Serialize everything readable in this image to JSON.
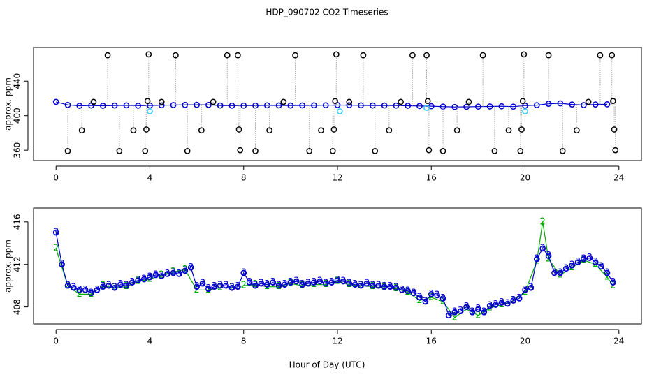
{
  "chart_data": [
    {
      "type": "scatter",
      "title": "HDP_090702  CO2 Timeseries",
      "ylabel": "approx. ppm",
      "xlim": [
        -0.96,
        24.96
      ],
      "ylim": [
        348,
        479
      ],
      "xticks": [
        0,
        4,
        8,
        12,
        16,
        20,
        24
      ],
      "yticks": [
        360,
        400,
        440
      ],
      "series": [
        {
          "color": "#0000cc",
          "marker": "circle",
          "line": true,
          "x": [
            0,
            0.5,
            1,
            1.5,
            2,
            2.5,
            3,
            3.5,
            4,
            4.5,
            5,
            5.5,
            6,
            6.5,
            7,
            7.5,
            8,
            8.5,
            9,
            9.5,
            10,
            10.5,
            11,
            11.5,
            12,
            12.5,
            13,
            13.5,
            14,
            14.5,
            15,
            15.5,
            16,
            16.5,
            17,
            17.5,
            18,
            18.5,
            19,
            19.5,
            20,
            20.5,
            21,
            21.5,
            22,
            22.5,
            23,
            23.5
          ],
          "values": [
            416,
            412.5,
            411.5,
            411.8,
            411.5,
            411.8,
            412,
            411.6,
            411.8,
            412.1,
            412.3,
            412.5,
            412.6,
            412.5,
            411.8,
            411.6,
            411.7,
            411.7,
            412,
            411.9,
            411.8,
            411.9,
            412,
            412.1,
            412.3,
            412.2,
            412,
            411.8,
            411.8,
            411.7,
            411.5,
            411.2,
            411,
            410.5,
            410.1,
            410.3,
            410.5,
            410.7,
            410.9,
            410.5,
            411.6,
            412.2,
            413.8,
            414.3,
            413,
            412.3,
            413,
            413.2
          ]
        },
        {
          "color": "#000000",
          "marker": "circle",
          "spikes": true,
          "x": [
            0.5,
            1.1,
            1.6,
            2.2,
            2.7,
            3.3,
            3.8,
            3.85,
            3.9,
            3.95,
            4.5,
            5.1,
            5.6,
            6.2,
            6.7,
            7.3,
            7.75,
            7.8,
            7.85,
            8.5,
            9.1,
            9.7,
            10.2,
            10.8,
            11.3,
            11.8,
            11.85,
            11.9,
            11.95,
            12.5,
            13.1,
            13.6,
            14.2,
            14.7,
            15.2,
            15.8,
            15.85,
            15.9,
            16.5,
            17.1,
            17.6,
            18.2,
            18.7,
            19.3,
            19.8,
            19.85,
            19.9,
            19.95,
            21,
            21.6,
            22.2,
            22.7,
            23.2,
            23.7,
            23.75,
            23.8,
            23.85
          ],
          "values": [
            359,
            383,
            416,
            470,
            359,
            383,
            359,
            384,
            417,
            471,
            416,
            470,
            359,
            383,
            416,
            470,
            470,
            384,
            360,
            359,
            383,
            416,
            470,
            359,
            383,
            359,
            384,
            417,
            471,
            416,
            470,
            359,
            383,
            416,
            470,
            470,
            417,
            360,
            359,
            383,
            416,
            470,
            359,
            383,
            359,
            384,
            417,
            471,
            470,
            359,
            383,
            416,
            470,
            470,
            417,
            384,
            360
          ]
        },
        {
          "color": "#33ccff",
          "marker": "circle",
          "x": [
            4,
            12.1,
            15.8,
            20
          ],
          "values": [
            405,
            405,
            409,
            405
          ]
        }
      ]
    },
    {
      "type": "scatter",
      "ylabel": "approx. ppm",
      "xlabel": "Hour of Day (UTC)",
      "xlim": [
        -0.96,
        24.96
      ],
      "ylim": [
        406.4,
        417.3
      ],
      "xticks": [
        0,
        4,
        8,
        12,
        16,
        20,
        24
      ],
      "yticks": [
        408,
        412,
        416
      ],
      "series": [
        {
          "name": "2",
          "color": "#00aa00",
          "marker": "name",
          "line": true,
          "x": [
            0,
            0.5,
            1,
            1.5,
            2,
            2.5,
            3,
            3.5,
            4,
            4.5,
            5,
            5.5,
            6,
            6.5,
            7,
            7.5,
            8,
            8.5,
            9,
            9.5,
            10,
            10.5,
            11,
            11.5,
            12,
            12.5,
            13,
            13.5,
            14,
            14.5,
            15,
            15.5,
            16,
            16.5,
            17,
            17.5,
            18,
            18.5,
            19,
            19.5,
            20,
            20.5,
            20.75,
            21,
            21.5,
            22,
            22.5,
            23,
            23.5,
            23.75
          ],
          "values": [
            413.5,
            410,
            409.2,
            409.2,
            410,
            409.8,
            409.9,
            410.4,
            410.6,
            411,
            411.3,
            411.5,
            409.6,
            409.6,
            409.8,
            409.8,
            410,
            410.1,
            409.9,
            409.9,
            410.2,
            410,
            410.1,
            410.1,
            410.4,
            410.1,
            410,
            409.9,
            409.8,
            409.7,
            409.4,
            408.6,
            408.9,
            408.5,
            407,
            407.8,
            407.2,
            407.9,
            408.2,
            408.6,
            409.4,
            412.3,
            416,
            412.5,
            411,
            411.7,
            412.4,
            412,
            410.8,
            410
          ]
        },
        {
          "name": "3",
          "color": "#0000cc",
          "marker": "circle+name",
          "line": true,
          "x": [
            0,
            0.25,
            0.5,
            0.75,
            1,
            1.25,
            1.5,
            1.75,
            2,
            2.25,
            2.5,
            2.75,
            3,
            3.25,
            3.5,
            3.75,
            4,
            4.25,
            4.5,
            4.75,
            5,
            5.25,
            5.5,
            5.75,
            6,
            6.25,
            6.5,
            6.75,
            7,
            7.25,
            7.5,
            7.75,
            8,
            8.25,
            8.5,
            8.75,
            9,
            9.25,
            9.5,
            9.75,
            10,
            10.25,
            10.5,
            10.75,
            11,
            11.25,
            11.5,
            11.75,
            12,
            12.25,
            12.5,
            12.75,
            13,
            13.25,
            13.5,
            13.75,
            14,
            14.25,
            14.5,
            14.75,
            15,
            15.25,
            15.5,
            15.75,
            16,
            16.25,
            16.5,
            16.75,
            17,
            17.25,
            17.5,
            17.75,
            18,
            18.25,
            18.5,
            18.75,
            19,
            19.25,
            19.5,
            19.75,
            20,
            20.25,
            20.5,
            20.75,
            21,
            21.25,
            21.5,
            21.75,
            22,
            22.25,
            22.5,
            22.75,
            23,
            23.25,
            23.5,
            23.75
          ],
          "values": [
            415,
            412,
            410,
            409.8,
            409.6,
            409.6,
            409.3,
            409.6,
            409.9,
            410,
            409.8,
            410.1,
            410,
            410.3,
            410.5,
            410.6,
            410.8,
            411,
            410.9,
            411.1,
            411.2,
            411.1,
            411.4,
            411.7,
            409.9,
            410.2,
            409.7,
            409.9,
            410,
            410,
            409.8,
            409.9,
            411.2,
            410.3,
            410,
            410.2,
            410.1,
            410.3,
            410,
            410.1,
            410.3,
            410.4,
            410.1,
            410.2,
            410.3,
            410.4,
            410.2,
            410.3,
            410.5,
            410.4,
            410.2,
            410.1,
            410,
            410.2,
            410,
            410,
            409.9,
            409.9,
            409.8,
            409.6,
            409.5,
            409.3,
            408.9,
            408.5,
            409.2,
            409.1,
            408.8,
            407.2,
            407.5,
            407.6,
            408,
            407.5,
            407.8,
            407.5,
            408.1,
            408.2,
            408.4,
            408.3,
            408.6,
            408.8,
            409.6,
            409.8,
            412.5,
            413.5,
            412.8,
            411.2,
            411.2,
            411.6,
            411.9,
            412.2,
            412.5,
            412.6,
            412.2,
            411.8,
            411.2,
            410.3
          ]
        }
      ]
    }
  ]
}
